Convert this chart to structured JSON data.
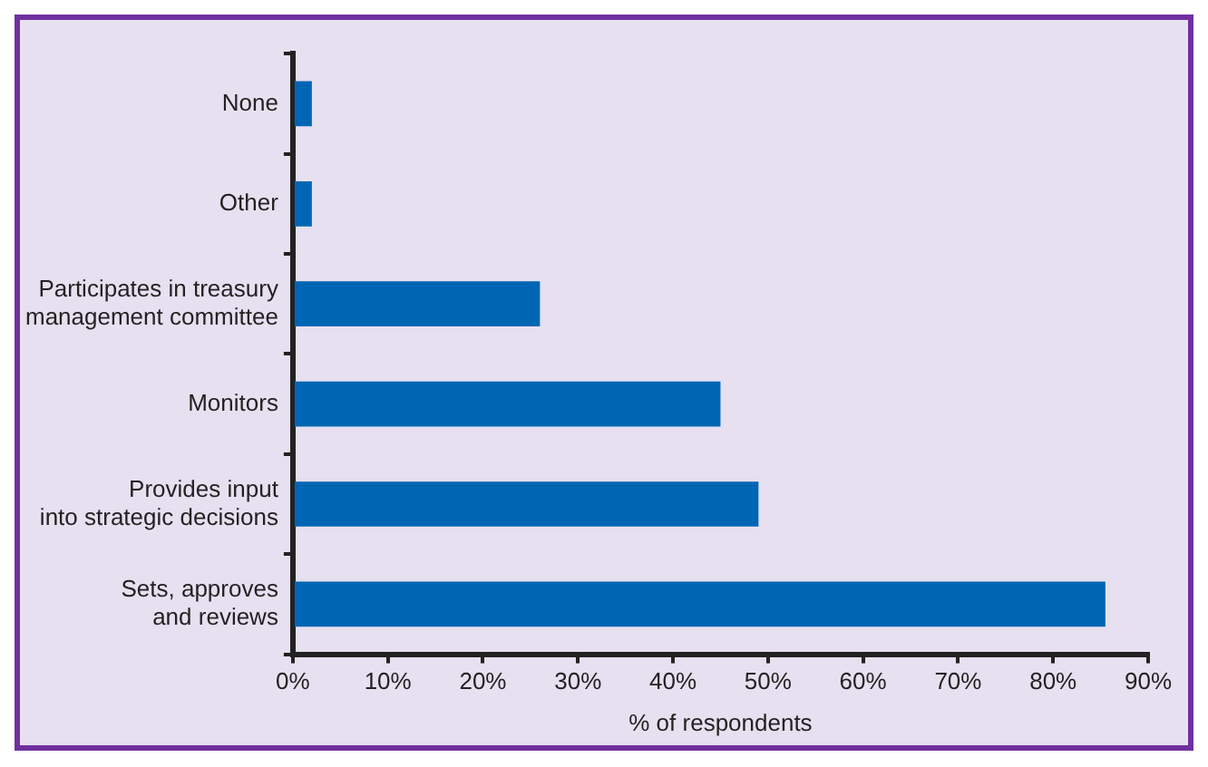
{
  "chart_data": {
    "type": "bar",
    "orientation": "horizontal",
    "xlabel": "% of respondents",
    "categories": [
      "None",
      "Other",
      "Participates in treasury\nmanagement committee",
      "Monitors",
      "Provides input\ninto strategic decisions",
      "Sets, approves\nand reviews"
    ],
    "values": [
      2,
      2,
      26,
      45,
      49,
      85.5
    ],
    "color": "#0066b3",
    "xlim": [
      0,
      90
    ],
    "xticks": [
      {
        "value": 0,
        "label": "0%"
      },
      {
        "value": 10,
        "label": "10%"
      },
      {
        "value": 20,
        "label": "20%"
      },
      {
        "value": 30,
        "label": "30%"
      },
      {
        "value": 40,
        "label": "40%"
      },
      {
        "value": 50,
        "label": "50%"
      },
      {
        "value": 60,
        "label": "60%"
      },
      {
        "value": 70,
        "label": "70%"
      },
      {
        "value": 80,
        "label": "80%"
      },
      {
        "value": 90,
        "label": "90%"
      }
    ],
    "grid": false,
    "legend": false
  }
}
